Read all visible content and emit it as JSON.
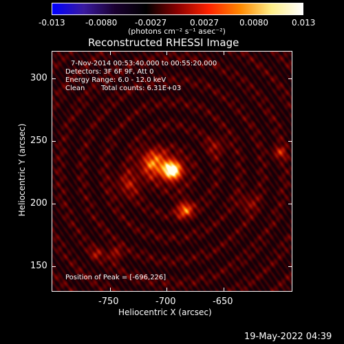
{
  "colorbar": {
    "tick_labels": [
      "-0.013",
      "-0.0080",
      "-0.0027",
      "0.0027",
      "0.0080",
      "0.013"
    ],
    "unit_label": "(photons cm⁻² s⁻¹ asec⁻²)",
    "colors": [
      "#0000ff",
      "#3a1aa0",
      "#1a0030",
      "#000000",
      "#8b0000",
      "#ff2200",
      "#ff8800",
      "#ffee88",
      "#ffffff"
    ]
  },
  "plot": {
    "title": "Reconstructed RHESSI Image",
    "time_range": "7-Nov-2014 00:53:40.000 to 00:55:20.000",
    "detectors": "Detectors: 3F 6F 9F, Att 0",
    "energy_range": "Energy Range: 6.0 - 12.0 keV",
    "clean_label": "Clean",
    "total_counts": "Total counts: 6.31E+03",
    "peak_position": "Position of Peak = [-696,226]",
    "x_axis_label": "Heliocentric X (arcsec)",
    "y_axis_label": "Heliocentric Y (arcsec)",
    "x_ticks": [
      "-750",
      "-700",
      "-650"
    ],
    "y_ticks": [
      "300",
      "250",
      "200",
      "150"
    ],
    "x_range": [
      -795,
      -605
    ],
    "y_range": [
      130,
      320
    ]
  },
  "footer": {
    "timestamp": "19-May-2022 04:39"
  }
}
